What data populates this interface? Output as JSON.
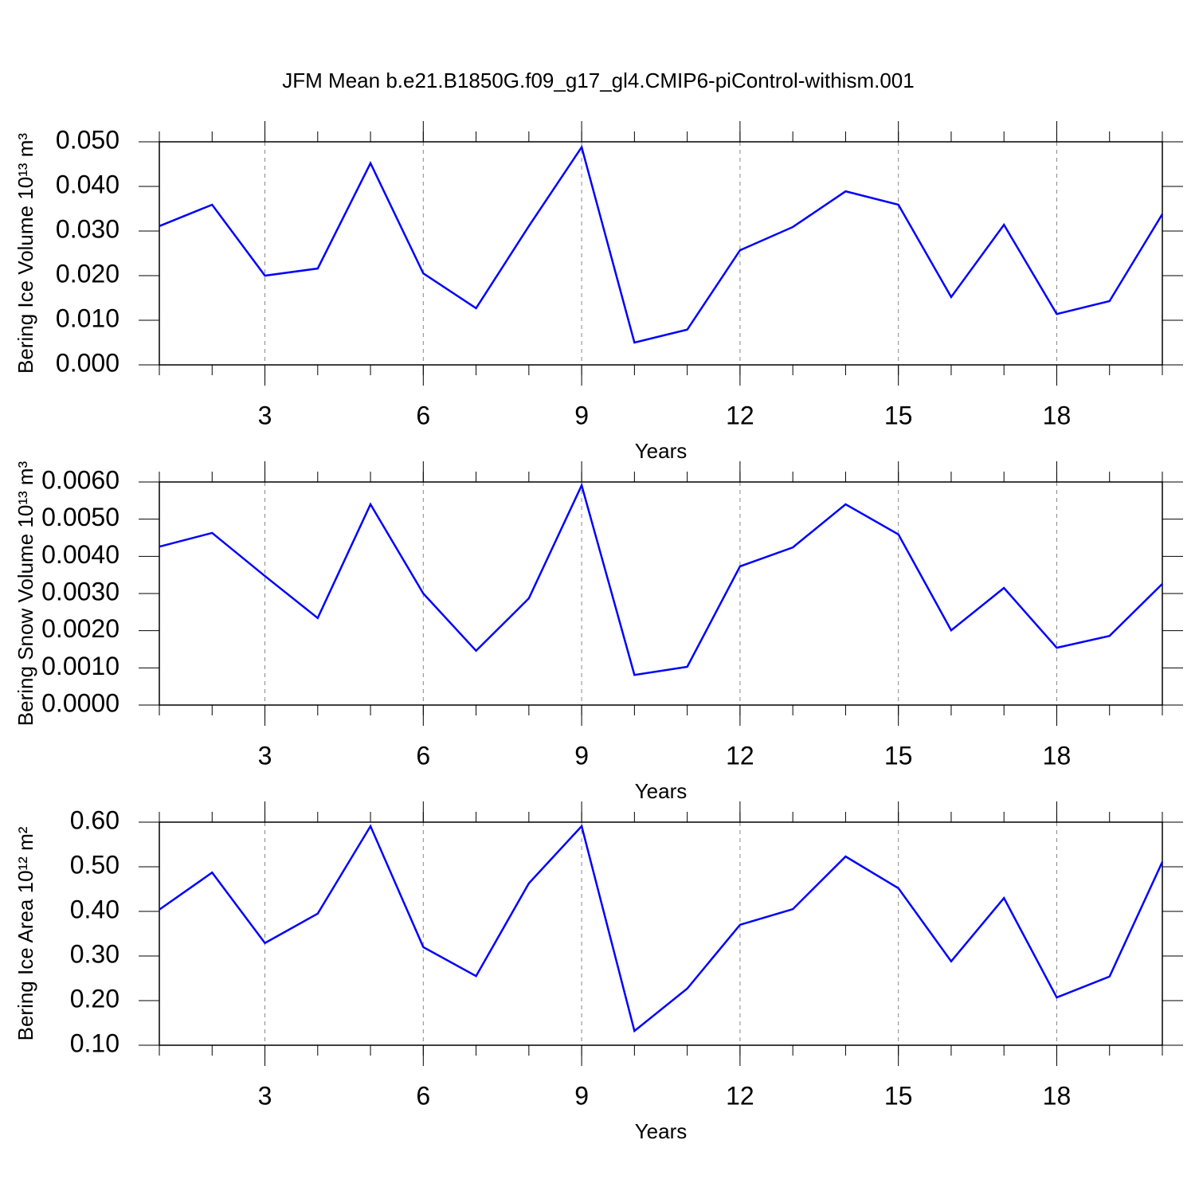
{
  "chart_data": [
    {
      "type": "line",
      "title": "JFM Mean b.e21.B1850G.f09_g17_gl4.CMIP6-piControl-withism.001",
      "ylabel": "Bering Ice Volume 10¹³ m³",
      "xlabel": "Years",
      "x": [
        1,
        2,
        3,
        4,
        5,
        6,
        7,
        8,
        9,
        10,
        11,
        12,
        13,
        14,
        15,
        16,
        17,
        18,
        19,
        20
      ],
      "series": [
        {
          "color": "#0000ff",
          "values": [
            0.0311,
            0.0359,
            0.02,
            0.0216,
            0.0452,
            0.0205,
            0.0127,
            0.0311,
            0.0488,
            0.005,
            0.0079,
            0.0257,
            0.0309,
            0.0389,
            0.0359,
            0.0152,
            0.0314,
            0.0114,
            0.0143,
            0.0338
          ]
        }
      ],
      "xlim": [
        1,
        20
      ],
      "xticks": [
        3,
        6,
        9,
        12,
        15,
        18
      ],
      "ylim": [
        0,
        0.05
      ],
      "yticks": [
        {
          "value": 0,
          "label": "0.000"
        },
        {
          "value": 0.01,
          "label": "0.010"
        },
        {
          "value": 0.02,
          "label": "0.020"
        },
        {
          "value": 0.03,
          "label": "0.030"
        },
        {
          "value": 0.04,
          "label": "0.040"
        },
        {
          "value": 0.05,
          "label": "0.050"
        }
      ],
      "xgrid": true
    },
    {
      "type": "line",
      "ylabel": "Bering Snow Volume 10¹³ m³",
      "xlabel": "Years",
      "x": [
        1,
        2,
        3,
        4,
        5,
        6,
        7,
        8,
        9,
        10,
        11,
        12,
        13,
        14,
        15,
        16,
        17,
        18,
        19,
        20
      ],
      "series": [
        {
          "color": "#0000ff",
          "values": [
            0.00426,
            0.00463,
            0.00347,
            0.00234,
            0.0054,
            0.003,
            0.00146,
            0.00287,
            0.00591,
            0.00081,
            0.00103,
            0.00373,
            0.00424,
            0.0054,
            0.00459,
            0.00201,
            0.00315,
            0.00154,
            0.00186,
            0.00326
          ]
        }
      ],
      "xlim": [
        1,
        20
      ],
      "xticks": [
        3,
        6,
        9,
        12,
        15,
        18
      ],
      "ylim": [
        0,
        0.006
      ],
      "yticks": [
        {
          "value": 0,
          "label": "0.0000"
        },
        {
          "value": 0.001,
          "label": "0.0010"
        },
        {
          "value": 0.002,
          "label": "0.0020"
        },
        {
          "value": 0.003,
          "label": "0.0030"
        },
        {
          "value": 0.004,
          "label": "0.0040"
        },
        {
          "value": 0.005,
          "label": "0.0050"
        },
        {
          "value": 0.006,
          "label": "0.0060"
        }
      ],
      "xgrid": true
    },
    {
      "type": "line",
      "ylabel": "Bering Ice Area 10¹² m²",
      "xlabel": "Years",
      "x": [
        1,
        2,
        3,
        4,
        5,
        6,
        7,
        8,
        9,
        10,
        11,
        12,
        13,
        14,
        15,
        16,
        17,
        18,
        19,
        20
      ],
      "series": [
        {
          "color": "#0000ff",
          "values": [
            0.404,
            0.487,
            0.329,
            0.395,
            0.591,
            0.32,
            0.255,
            0.463,
            0.591,
            0.132,
            0.227,
            0.37,
            0.405,
            0.523,
            0.452,
            0.288,
            0.43,
            0.207,
            0.254,
            0.511
          ]
        }
      ],
      "xlim": [
        1,
        20
      ],
      "xticks": [
        3,
        6,
        9,
        12,
        15,
        18
      ],
      "ylim": [
        0.1,
        0.6
      ],
      "yticks": [
        {
          "value": 0.1,
          "label": "0.10"
        },
        {
          "value": 0.2,
          "label": "0.20"
        },
        {
          "value": 0.3,
          "label": "0.30"
        },
        {
          "value": 0.4,
          "label": "0.40"
        },
        {
          "value": 0.5,
          "label": "0.50"
        },
        {
          "value": 0.6,
          "label": "0.60"
        }
      ],
      "xgrid": true
    }
  ]
}
